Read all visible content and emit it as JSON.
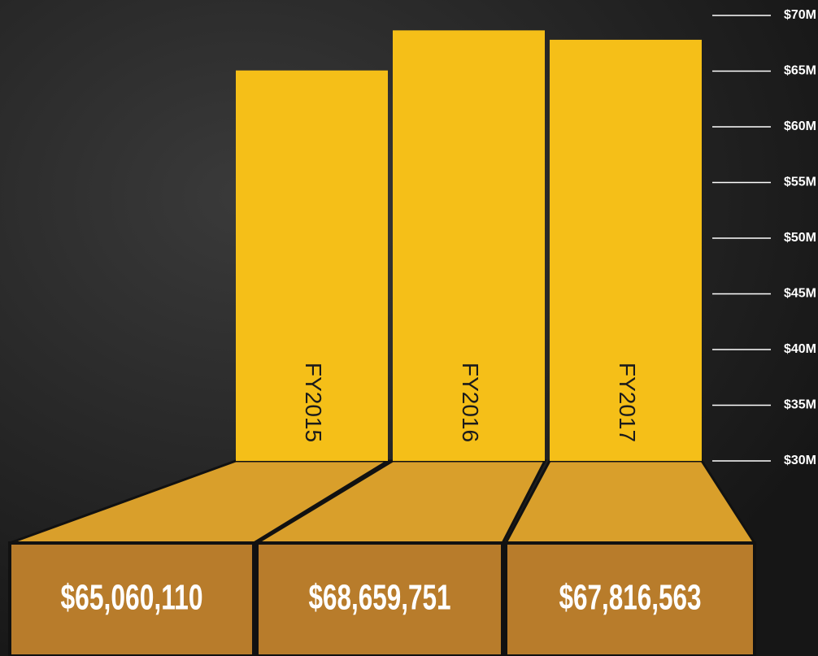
{
  "chart_data": {
    "type": "bar",
    "categories": [
      "FY2015",
      "FY2016",
      "FY2017"
    ],
    "values": [
      65060110,
      68659751,
      67816563
    ],
    "value_labels": [
      "$65,060,110",
      "$68,659,751",
      "$67,816,563"
    ],
    "color": "#f5bf18",
    "ylim": [
      30000000,
      70000000
    ],
    "yticks": [
      {
        "value": 30000000,
        "label": "$30M"
      },
      {
        "value": 35000000,
        "label": "$35M"
      },
      {
        "value": 40000000,
        "label": "$40M"
      },
      {
        "value": 45000000,
        "label": "$45M"
      },
      {
        "value": 50000000,
        "label": "$50M"
      },
      {
        "value": 55000000,
        "label": "$55M"
      },
      {
        "value": 60000000,
        "label": "$60M"
      },
      {
        "value": 65000000,
        "label": "$65M"
      },
      {
        "value": 70000000,
        "label": "$70M"
      }
    ]
  }
}
